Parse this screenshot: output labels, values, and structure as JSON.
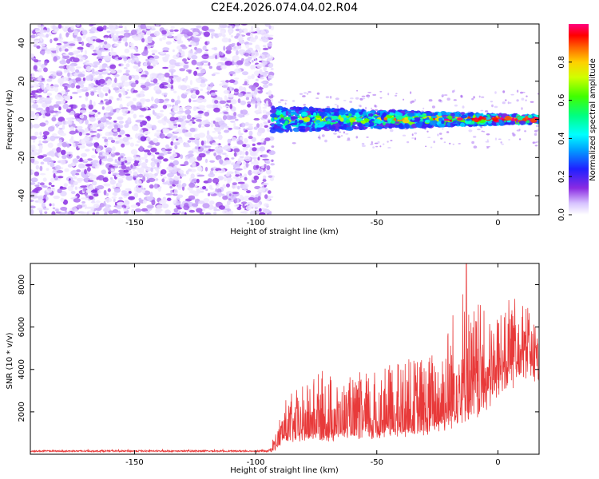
{
  "title": "C2E4.2026.074.04.02.R04",
  "colors": {
    "snr_line": "#e83a3a",
    "axis": "#000000",
    "background": "#ffffff"
  },
  "chart_data": [
    {
      "type": "heatmap",
      "name": "spectrogram",
      "xlabel": "Height of straight line (km)",
      "ylabel": "Frequency (Hz)",
      "xlim": [
        -193,
        17
      ],
      "ylim": [
        -50,
        50
      ],
      "x_ticks": [
        -150,
        -100,
        -50,
        0
      ],
      "y_ticks": [
        -40,
        -20,
        0,
        20,
        40
      ],
      "grid": false,
      "regions": [
        {
          "x_range": [
            -193,
            -93
          ],
          "y_range": [
            -50,
            50
          ],
          "description": "broadband noise",
          "amplitude_range": [
            0.02,
            0.15
          ]
        },
        {
          "x_range": [
            -93,
            17
          ],
          "y_center": 0,
          "y_halfwidth": [
            4,
            1
          ],
          "description": "signal band near 0 Hz",
          "amplitude_range": [
            0.15,
            1.0
          ]
        }
      ],
      "colorbar": {
        "label": "Normalized spectral amplitude",
        "ticks": [
          0.0,
          0.2,
          0.4,
          0.6,
          0.8
        ],
        "tick_labels": [
          "0.0",
          "0.2",
          "0.4",
          "0.6",
          "0.8"
        ],
        "range": [
          0,
          1
        ]
      }
    },
    {
      "type": "line",
      "name": "snr",
      "xlabel": "Height of straight line (km)",
      "ylabel": "SNR (10 * v/v)",
      "xlim": [
        -193,
        17
      ],
      "ylim": [
        0,
        9000
      ],
      "x_ticks": [
        -150,
        -100,
        -50,
        0
      ],
      "y_ticks": [
        2000,
        4000,
        6000,
        8000
      ],
      "grid": false,
      "series": [
        {
          "name": "SNR",
          "x": [
            -193,
            -180,
            -160,
            -140,
            -120,
            -100,
            -95,
            -92,
            -88,
            -80,
            -75,
            -70,
            -65,
            -60,
            -55,
            -50,
            -45,
            -40,
            -35,
            -30,
            -25,
            -20,
            -17,
            -15,
            -12,
            -10,
            -8,
            -5,
            -3,
            0,
            3,
            6,
            9,
            12,
            15,
            17
          ],
          "baseline": [
            150,
            150,
            150,
            150,
            150,
            150,
            150,
            300,
            800,
            900,
            1000,
            900,
            1100,
            1000,
            1100,
            1000,
            1200,
            1100,
            1300,
            1200,
            1500,
            1800,
            2000,
            2200,
            2300,
            2400,
            2600,
            2800,
            3000,
            4200,
            4400,
            4600,
            5000,
            5300,
            5000,
            4800
          ],
          "spread": [
            120,
            120,
            120,
            120,
            120,
            120,
            150,
            600,
            1500,
            2000,
            2400,
            2500,
            2000,
            2200,
            2300,
            2400,
            2600,
            2800,
            2900,
            3000,
            3200,
            4000,
            4800,
            5200,
            4500,
            4000,
            3800,
            3500,
            3200,
            2500,
            2600,
            2800,
            2500,
            2000,
            1800,
            1600
          ],
          "peak_y": 9000,
          "peak_x": -13
        }
      ]
    }
  ]
}
